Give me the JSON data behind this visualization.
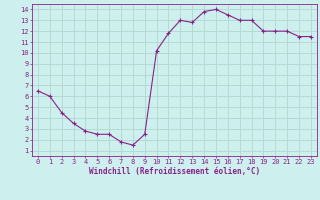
{
  "x": [
    0,
    1,
    2,
    3,
    4,
    5,
    6,
    7,
    8,
    9,
    10,
    11,
    12,
    13,
    14,
    15,
    16,
    17,
    18,
    19,
    20,
    21,
    22,
    23
  ],
  "y": [
    6.5,
    6.0,
    4.5,
    3.5,
    2.8,
    2.5,
    2.5,
    1.8,
    1.5,
    2.5,
    10.2,
    11.8,
    13.0,
    12.8,
    13.8,
    14.0,
    13.5,
    13.0,
    13.0,
    12.0,
    12.0,
    12.0,
    11.5,
    11.5
  ],
  "line_color": "#882288",
  "marker": "+",
  "bg_color": "#cdf0ee",
  "grid_color": "#b0d8cc",
  "xlabel": "Windchill (Refroidissement éolien,°C)",
  "xlim": [
    -0.5,
    23.5
  ],
  "ylim": [
    0.5,
    14.5
  ],
  "yticks": [
    1,
    2,
    3,
    4,
    5,
    6,
    7,
    8,
    9,
    10,
    11,
    12,
    13,
    14
  ],
  "xticks": [
    0,
    1,
    2,
    3,
    4,
    5,
    6,
    7,
    8,
    9,
    10,
    11,
    12,
    13,
    14,
    15,
    16,
    17,
    18,
    19,
    20,
    21,
    22,
    23
  ],
  "tick_color": "#882288",
  "label_color": "#882288",
  "axis_color": "#882288"
}
